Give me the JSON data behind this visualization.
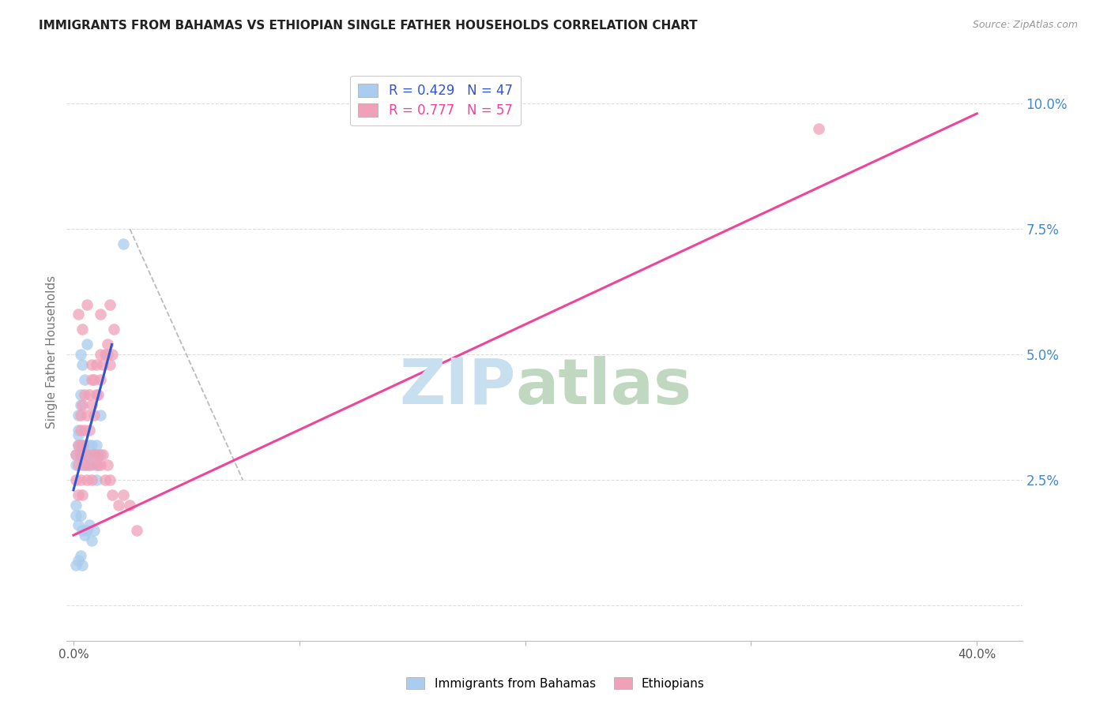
{
  "title": "IMMIGRANTS FROM BAHAMAS VS ETHIOPIAN SINGLE FATHER HOUSEHOLDS CORRELATION CHART",
  "source": "Source: ZipAtlas.com",
  "ylabel": "Single Father Households",
  "right_yticks": [
    0.0,
    0.025,
    0.05,
    0.075,
    0.1
  ],
  "right_yticklabels": [
    "",
    "2.5%",
    "5.0%",
    "7.5%",
    "10.0%"
  ],
  "xticks": [
    0.0,
    0.1,
    0.2,
    0.3,
    0.4
  ],
  "xticklabels": [
    "0.0%",
    "",
    "",
    "",
    "40.0%"
  ],
  "xlim": [
    -0.003,
    0.42
  ],
  "ylim": [
    -0.007,
    0.108
  ],
  "watermark_zip": "ZIP",
  "watermark_atlas": "atlas",
  "watermark_color_zip": "#c8dff0",
  "watermark_color_atlas": "#c0d8c0",
  "blue_scatter_color": "#aaccee",
  "pink_scatter_color": "#f0a0b8",
  "blue_line_color": "#3355cc",
  "pink_line_color": "#ee4499",
  "grid_color": "#dddddd",
  "background_color": "#ffffff",
  "legend_blue_label": "R = 0.429   N = 47",
  "legend_pink_label": "R = 0.777   N = 57",
  "blue_points_x": [
    0.001,
    0.001,
    0.002,
    0.002,
    0.002,
    0.002,
    0.003,
    0.003,
    0.003,
    0.003,
    0.003,
    0.004,
    0.004,
    0.004,
    0.004,
    0.005,
    0.005,
    0.005,
    0.006,
    0.006,
    0.006,
    0.007,
    0.007,
    0.008,
    0.008,
    0.009,
    0.01,
    0.01,
    0.011,
    0.012,
    0.001,
    0.001,
    0.002,
    0.003,
    0.004,
    0.005,
    0.006,
    0.007,
    0.008,
    0.009,
    0.001,
    0.002,
    0.003,
    0.004,
    0.012,
    0.015,
    0.022
  ],
  "blue_points_y": [
    0.028,
    0.03,
    0.032,
    0.034,
    0.035,
    0.038,
    0.03,
    0.032,
    0.04,
    0.042,
    0.05,
    0.028,
    0.03,
    0.032,
    0.048,
    0.03,
    0.032,
    0.045,
    0.028,
    0.03,
    0.052,
    0.03,
    0.032,
    0.028,
    0.032,
    0.03,
    0.025,
    0.032,
    0.028,
    0.03,
    0.02,
    0.018,
    0.016,
    0.018,
    0.015,
    0.014,
    0.015,
    0.016,
    0.013,
    0.015,
    0.008,
    0.009,
    0.01,
    0.008,
    0.038,
    0.05,
    0.072
  ],
  "pink_points_x": [
    0.001,
    0.001,
    0.002,
    0.002,
    0.003,
    0.003,
    0.003,
    0.004,
    0.004,
    0.005,
    0.005,
    0.006,
    0.006,
    0.007,
    0.007,
    0.008,
    0.008,
    0.009,
    0.009,
    0.01,
    0.01,
    0.011,
    0.012,
    0.012,
    0.013,
    0.014,
    0.015,
    0.016,
    0.017,
    0.018,
    0.002,
    0.003,
    0.004,
    0.005,
    0.006,
    0.007,
    0.008,
    0.009,
    0.01,
    0.011,
    0.012,
    0.013,
    0.014,
    0.015,
    0.016,
    0.017,
    0.02,
    0.022,
    0.025,
    0.028,
    0.002,
    0.004,
    0.006,
    0.008,
    0.012,
    0.016,
    0.33
  ],
  "pink_points_y": [
    0.025,
    0.03,
    0.028,
    0.032,
    0.03,
    0.035,
    0.038,
    0.032,
    0.04,
    0.035,
    0.042,
    0.03,
    0.038,
    0.035,
    0.042,
    0.04,
    0.045,
    0.038,
    0.045,
    0.042,
    0.048,
    0.042,
    0.045,
    0.05,
    0.048,
    0.05,
    0.052,
    0.048,
    0.05,
    0.055,
    0.022,
    0.025,
    0.022,
    0.028,
    0.025,
    0.028,
    0.025,
    0.03,
    0.028,
    0.03,
    0.028,
    0.03,
    0.025,
    0.028,
    0.025,
    0.022,
    0.02,
    0.022,
    0.02,
    0.015,
    0.058,
    0.055,
    0.06,
    0.048,
    0.058,
    0.06,
    0.095
  ],
  "blue_line_x": [
    0.0,
    0.017
  ],
  "blue_line_y": [
    0.023,
    0.052
  ],
  "pink_line_x": [
    0.0,
    0.4
  ],
  "pink_line_y": [
    0.014,
    0.098
  ],
  "diag_line_x": [
    0.025,
    0.075
  ],
  "diag_line_y": [
    0.075,
    0.025
  ]
}
